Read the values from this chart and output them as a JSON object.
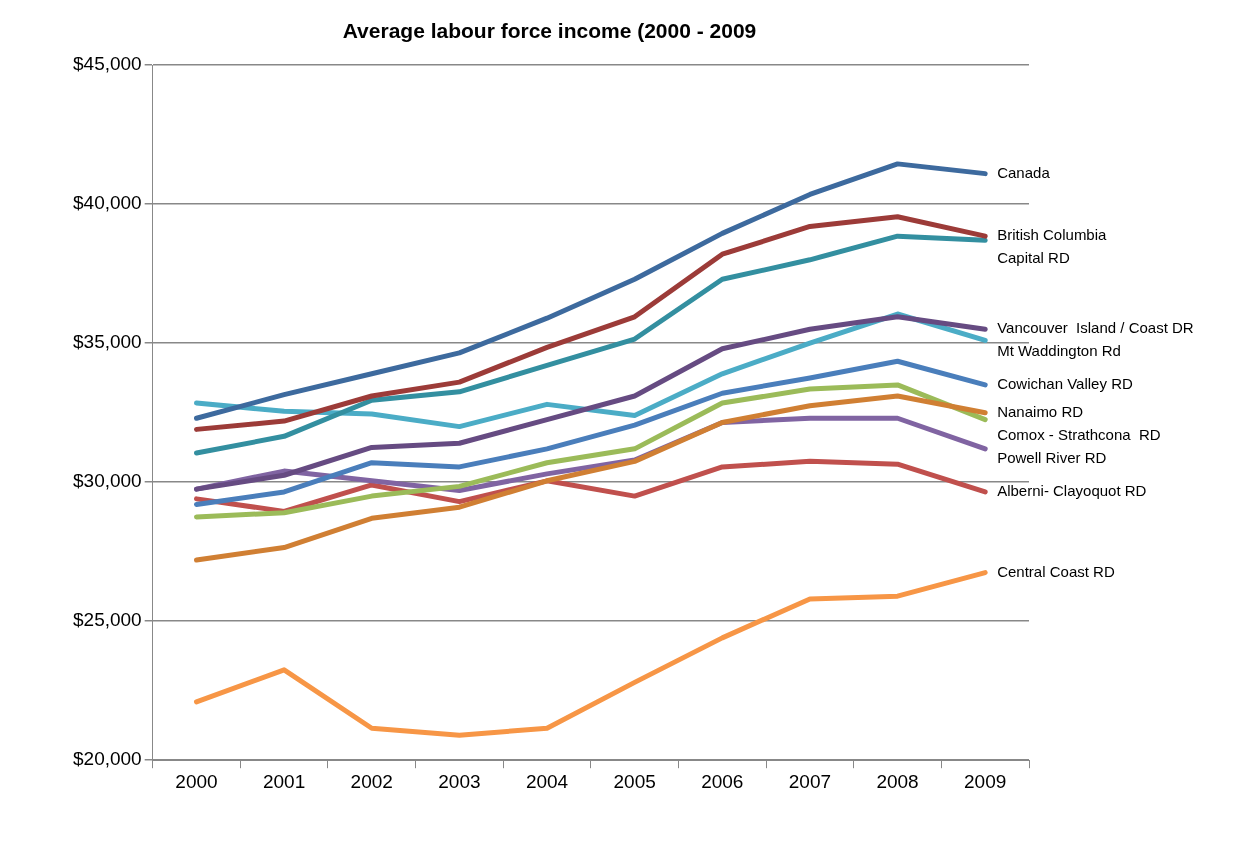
{
  "chart_data": {
    "type": "line",
    "title": "Average labour force income (2000 - 2009",
    "categories": [
      "2000",
      "2001",
      "2002",
      "2003",
      "2004",
      "2005",
      "2006",
      "2007",
      "2008",
      "2009"
    ],
    "ylim": [
      20000,
      45000
    ],
    "yticks": [
      {
        "value": 20000,
        "label": "$20,000"
      },
      {
        "value": 25000,
        "label": "$25,000"
      },
      {
        "value": 30000,
        "label": "$30,000"
      },
      {
        "value": 35000,
        "label": "$35,000"
      },
      {
        "value": 40000,
        "label": "$40,000"
      },
      {
        "value": 45000,
        "label": "$45,000"
      }
    ],
    "grid": "y",
    "legend": false,
    "marker": "none",
    "line_style": "solid",
    "series": [
      {
        "name": "Canada",
        "color": "#3d6a9e",
        "values": [
          32300,
          33150,
          33900,
          34650,
          35900,
          37300,
          38950,
          40350,
          41450,
          41100
        ]
      },
      {
        "name": "British Columbia",
        "color": "#9c3b38",
        "values": [
          31900,
          32200,
          33100,
          33600,
          34850,
          35950,
          38200,
          39200,
          39550,
          38850
        ]
      },
      {
        "name": "Capital RD",
        "color": "#338fa0",
        "values": [
          31050,
          31650,
          32950,
          33250,
          34200,
          35150,
          37300,
          38000,
          38850,
          38700
        ]
      },
      {
        "name": "Vancouver  Island / Coast DR",
        "color": "#664b82",
        "values": [
          29750,
          30250,
          31250,
          31400,
          32250,
          33100,
          34800,
          35500,
          35950,
          35500
        ]
      },
      {
        "name": "Mt Waddington Rd",
        "color": "#4bacc6",
        "values": [
          32850,
          32550,
          32450,
          32000,
          32800,
          32400,
          33900,
          35000,
          36050,
          35100
        ]
      },
      {
        "name": "Cowichan Valley RD",
        "color": "#4a7ebb",
        "values": [
          29200,
          29650,
          30700,
          30550,
          31200,
          32050,
          33200,
          33750,
          34350,
          33500
        ]
      },
      {
        "name": "Nanaimo RD",
        "color": "#d07f33",
        "values": [
          27200,
          27650,
          28700,
          29100,
          30050,
          30750,
          32150,
          32750,
          33100,
          32500
        ]
      },
      {
        "name": "Comox - Strathcona  RD",
        "color": "#9bbb59",
        "values": [
          28750,
          28900,
          29500,
          29850,
          30700,
          31200,
          32850,
          33350,
          33500,
          32250
        ]
      },
      {
        "name": "Powell River RD",
        "color": "#8064a2",
        "values": [
          29750,
          30400,
          30050,
          29700,
          30300,
          30800,
          32150,
          32300,
          32300,
          31200
        ]
      },
      {
        "name": "Alberni- Clayoquot RD",
        "color": "#c0504d",
        "values": [
          29400,
          28950,
          29900,
          29300,
          30050,
          29500,
          30550,
          30750,
          30650,
          29650
        ]
      },
      {
        "name": "Central Coast RD",
        "color": "#f79646",
        "values": [
          22100,
          23250,
          21150,
          20900,
          21150,
          22800,
          24400,
          25800,
          25900,
          26750
        ]
      }
    ]
  }
}
